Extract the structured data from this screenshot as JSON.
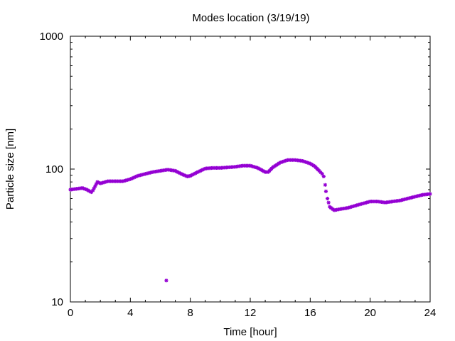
{
  "chart_data": {
    "type": "scatter",
    "title": "Modes location (3/19/19)",
    "xlabel": "Time [hour]",
    "ylabel": "Particle size [nm]",
    "xlim": [
      0,
      24
    ],
    "ylim": [
      10,
      1000
    ],
    "yscale": "log",
    "xticks": [
      0,
      4,
      8,
      12,
      16,
      20,
      24
    ],
    "xtick_labels": [
      "0",
      "4",
      "8",
      "12",
      "16",
      "20",
      "24"
    ],
    "yticks": [
      10,
      100,
      1000
    ],
    "ytick_labels": [
      "10",
      "100",
      "1000"
    ],
    "grid": false,
    "marker_color": "#9400d3",
    "marker": "star",
    "series": [
      {
        "x": [
          0.0,
          0.4,
          0.8,
          1.1,
          1.4,
          1.5,
          1.8,
          2.0,
          2.5,
          3.0,
          3.5,
          4.0,
          4.5,
          5.0,
          5.5,
          6.0,
          6.5,
          7.0,
          7.4,
          7.8,
          8.0,
          8.5,
          9.0,
          9.5,
          10.0,
          10.5,
          11.0,
          11.5,
          12.0,
          12.5,
          13.0,
          13.2,
          13.5,
          14.0,
          14.5,
          15.0,
          15.5,
          16.0,
          16.3,
          16.6,
          16.8,
          16.9,
          17.0,
          17.05,
          17.15,
          17.3,
          17.6,
          18.0,
          18.5,
          19.0,
          19.5,
          20.0,
          20.5,
          21.0,
          21.5,
          22.0,
          22.5,
          23.0,
          23.5,
          24.0,
          6.4
        ],
        "y": [
          70,
          71,
          72,
          70,
          67,
          69,
          80,
          78,
          81,
          81,
          81,
          84,
          89,
          92,
          95,
          97,
          99,
          97,
          92,
          88,
          89,
          95,
          101,
          102,
          102,
          103,
          104,
          106,
          106,
          102,
          95,
          95,
          103,
          112,
          117,
          117,
          115,
          110,
          105,
          97,
          92,
          88,
          76,
          68,
          60,
          52,
          49,
          50,
          51,
          53,
          55,
          57,
          57,
          56,
          57,
          58,
          60,
          62,
          64,
          65,
          14.5
        ]
      }
    ]
  }
}
